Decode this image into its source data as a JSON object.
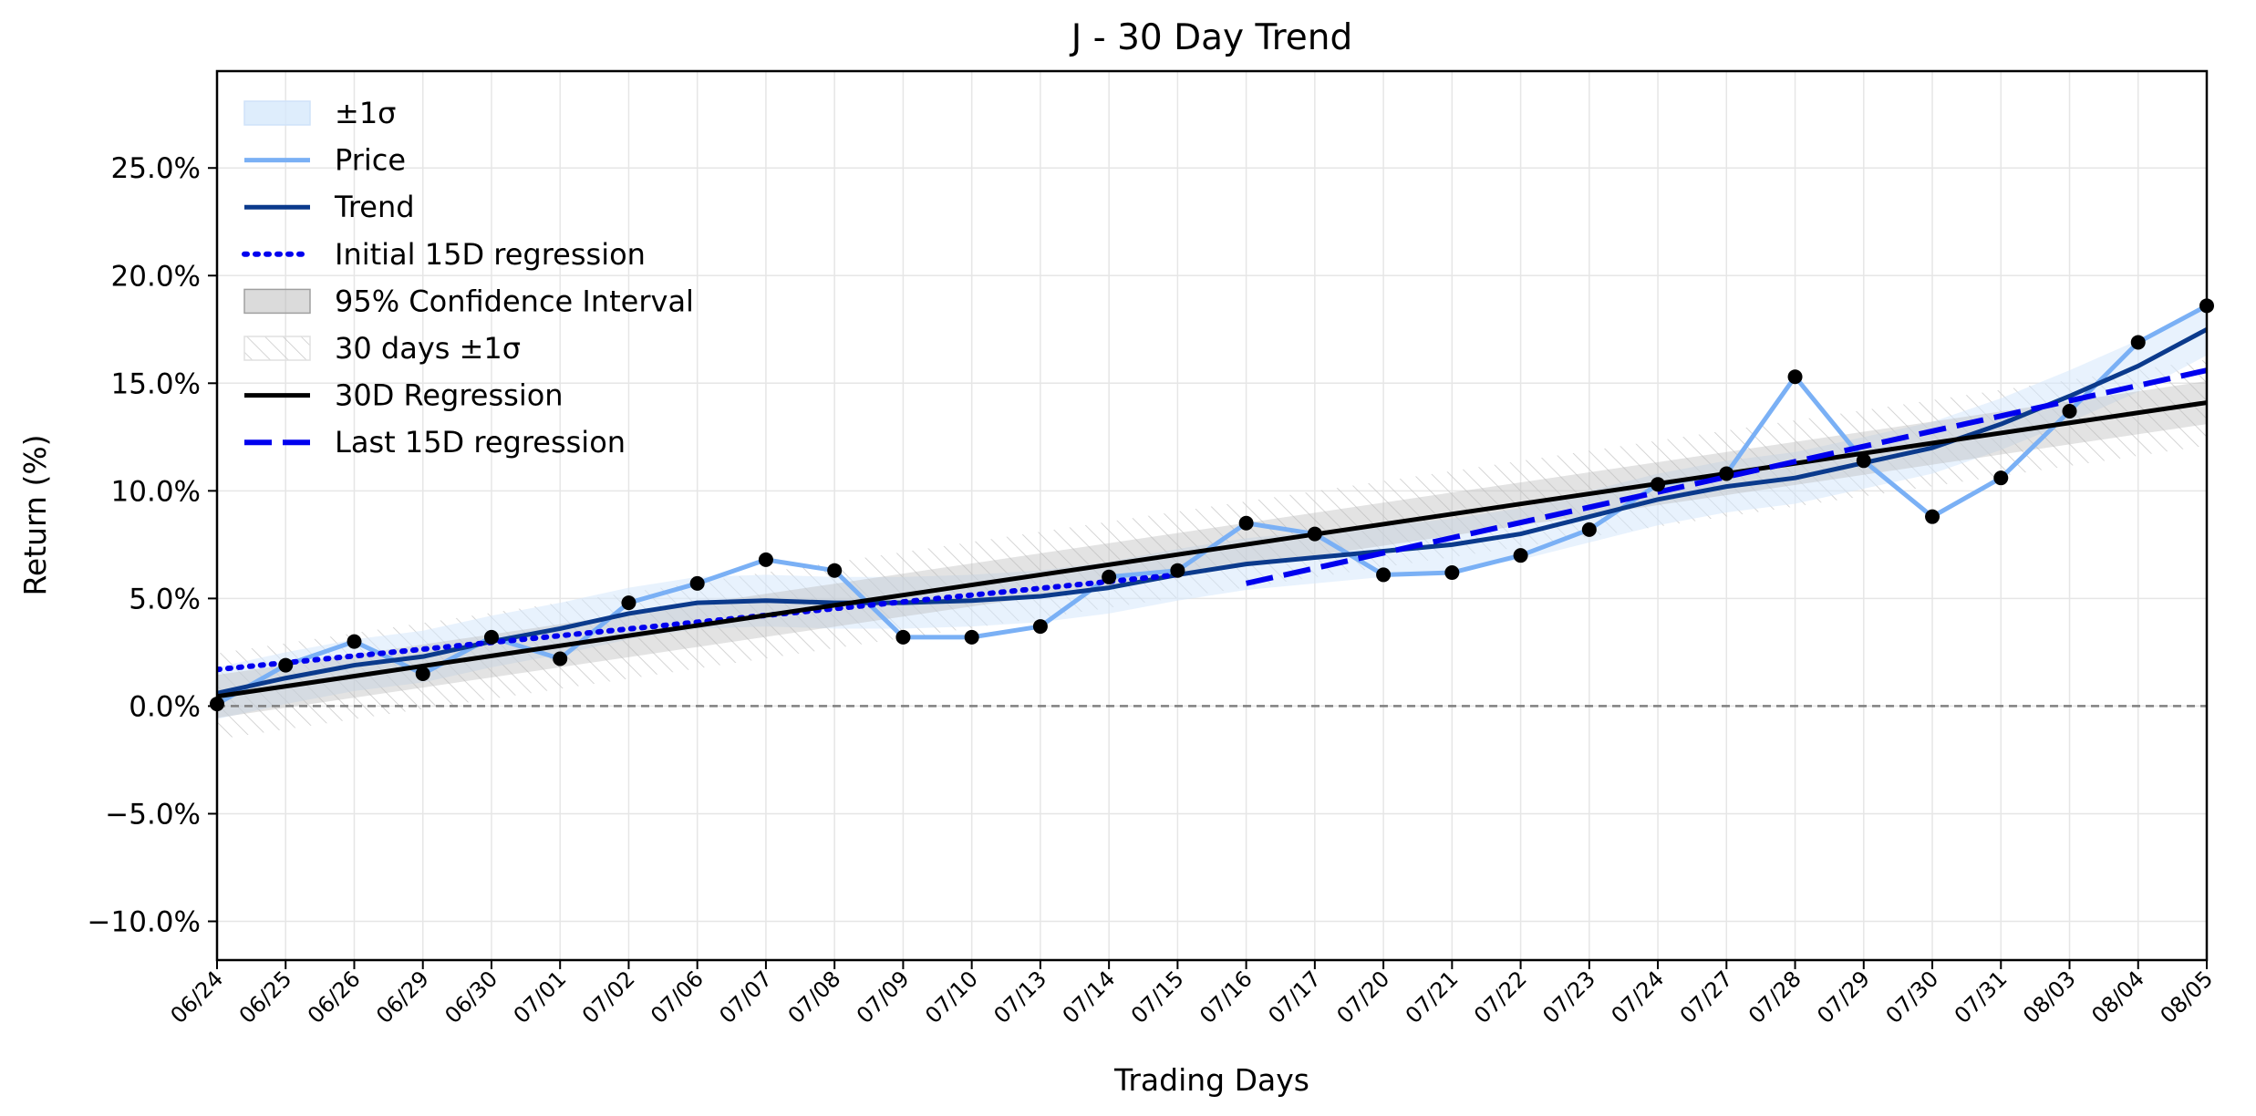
{
  "chart_data": {
    "type": "line",
    "title": "J - 30 Day Trend",
    "xlabel": "Trading Days",
    "ylabel": "Return (%)",
    "categories": [
      "06/24",
      "06/25",
      "06/26",
      "06/29",
      "06/30",
      "07/01",
      "07/02",
      "07/06",
      "07/07",
      "07/08",
      "07/09",
      "07/10",
      "07/13",
      "07/14",
      "07/15",
      "07/16",
      "07/17",
      "07/20",
      "07/21",
      "07/22",
      "07/23",
      "07/24",
      "07/27",
      "07/28",
      "07/29",
      "07/30",
      "07/31",
      "08/03",
      "08/04",
      "08/05"
    ],
    "ylim": [
      -11.8,
      29.5
    ],
    "yticks": [
      -10,
      -5,
      0,
      5,
      10,
      15,
      20,
      25
    ],
    "ytick_labels": [
      "−10.0%",
      "−5.0%",
      "0.0%",
      "5.0%",
      "10.0%",
      "15.0%",
      "20.0%",
      "25.0%"
    ],
    "grid": true,
    "legend_position": "top-left",
    "legend": [
      "±1σ",
      "Price",
      "Trend",
      "Initial 15D regression",
      "95% Confidence Interval",
      "30 days ±1σ",
      "30D Regression",
      "Last 15D regression"
    ],
    "series": [
      {
        "name": "Price",
        "color": "#7ab0f5",
        "values": [
          0.1,
          1.9,
          3.0,
          1.5,
          3.2,
          2.2,
          4.8,
          5.7,
          6.8,
          6.3,
          3.2,
          3.2,
          3.7,
          6.0,
          6.3,
          8.5,
          8.0,
          6.1,
          6.2,
          7.0,
          8.2,
          10.3,
          10.8,
          15.3,
          11.4,
          8.8,
          10.6,
          13.7,
          16.9,
          18.6
        ]
      },
      {
        "name": "Trend",
        "color": "#0b3a8c",
        "values": [
          0.6,
          1.3,
          1.9,
          2.3,
          3.0,
          3.6,
          4.3,
          4.8,
          4.9,
          4.8,
          4.8,
          4.9,
          5.1,
          5.5,
          6.1,
          6.6,
          6.9,
          7.2,
          7.5,
          8.0,
          8.8,
          9.6,
          10.2,
          10.6,
          11.3,
          12.0,
          13.1,
          14.4,
          15.8,
          17.5
        ]
      },
      {
        "name": "Initial 15D regression",
        "color": "#0000ee",
        "x_range": [
          0,
          14
        ],
        "y_range": [
          1.7,
          6.1
        ]
      },
      {
        "name": "30D Regression",
        "color": "#000000",
        "x_range": [
          0,
          29
        ],
        "y_range": [
          0.45,
          14.1
        ]
      },
      {
        "name": "Last 15D regression",
        "color": "#0000ee",
        "x_range": [
          15,
          29
        ],
        "y_range": [
          5.7,
          15.6
        ]
      }
    ],
    "bands": {
      "sigma_halfwidth": 1.2,
      "ci95_halfwidth": 1.0,
      "days30_sigma_halfwidth": 2.0
    },
    "reference_line": 0,
    "colors": {
      "price": "#7ab0f5",
      "trend": "#0b3a8c",
      "sigma_band": "#d6e8fb",
      "ci_band": "#b8b8b8",
      "regression_30d": "#000000",
      "regression_15d": "#0000ee",
      "zero_line": "#808080"
    }
  }
}
